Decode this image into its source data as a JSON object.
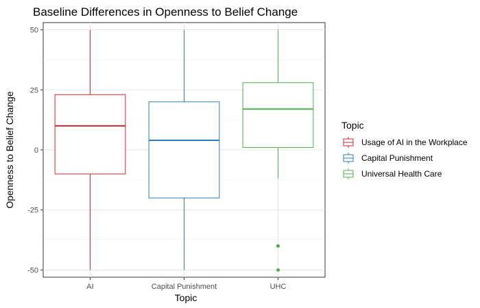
{
  "chart_data": {
    "type": "boxplot",
    "title": "Baseline Differences in Openness to Belief Change",
    "xlabel": "Topic",
    "ylabel": "Openness to Belief Change",
    "ylim": [
      -53,
      53
    ],
    "yticks": [
      -50,
      -25,
      0,
      25,
      50
    ],
    "grid": true,
    "legend": {
      "title": "Topic",
      "position": "right",
      "entries": [
        "Usage of AI in the Workplace",
        "Capital Punishment",
        "Universal Health Care"
      ]
    },
    "categories": [
      "AI",
      "Capital Punishment",
      "UHC"
    ],
    "series": [
      {
        "category": "AI",
        "name": "Usage of AI in the Workplace",
        "color": "#d62728",
        "min": -50,
        "q1": -10,
        "median": 10,
        "q3": 23,
        "max": 50,
        "outliers": []
      },
      {
        "category": "Capital Punishment",
        "name": "Capital Punishment",
        "color": "#2c7bb6",
        "min": -50,
        "q1": -20,
        "median": 4,
        "q3": 20,
        "max": 50,
        "outliers": []
      },
      {
        "category": "UHC",
        "name": "Universal Health Care",
        "color": "#4daf4a",
        "min": -12,
        "q1": 1,
        "median": 17,
        "q3": 28,
        "max": 50,
        "outliers": [
          -40,
          -50
        ]
      }
    ]
  }
}
